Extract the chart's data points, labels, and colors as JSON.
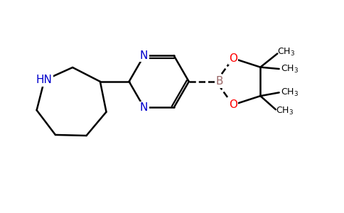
{
  "bg_color": "#ffffff",
  "bond_color": "#000000",
  "n_color": "#0000cc",
  "o_color": "#ff0000",
  "b_color": "#996666",
  "line_width": 1.8,
  "font_size_atom": 11,
  "font_size_methyl": 9,
  "xlim": [
    0,
    10
  ],
  "ylim": [
    0,
    6
  ]
}
